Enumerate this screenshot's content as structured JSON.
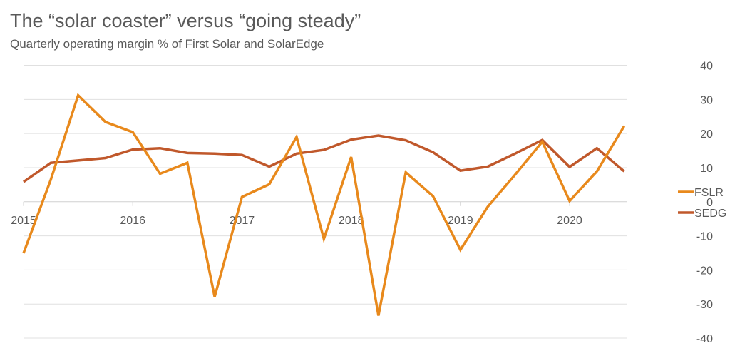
{
  "chart_data": {
    "type": "line",
    "title": "The “solar coaster” versus “going steady”",
    "subtitle": "Quarterly operating margin % of First Solar and SolarEdge",
    "xlabel": "",
    "ylabel": "",
    "ylim": [
      -40,
      40
    ],
    "yticks": [
      "40",
      "30",
      "20",
      "10",
      "0",
      "-10",
      "-20",
      "-30",
      "-40"
    ],
    "ytick_values": [
      40,
      30,
      20,
      10,
      0,
      -10,
      -20,
      -30,
      -40
    ],
    "xticks": [
      "2015",
      "2016",
      "2017",
      "2018",
      "2019",
      "2020"
    ],
    "x_quarter_start": 2015,
    "grid": true,
    "legend_position": "right",
    "series": [
      {
        "name": "FSLR",
        "color": "#E8891C",
        "values": [
          -15.1,
          6.5,
          31.2,
          23.4,
          20.4,
          8.2,
          11.4,
          -27.9,
          1.4,
          5.1,
          19.0,
          -10.9,
          13.1,
          -33.4,
          8.6,
          1.6,
          -14.1,
          -1.5,
          7.9,
          17.6,
          0.2,
          8.9,
          22.2
        ]
      },
      {
        "name": "SEDG",
        "color": "#C0582B",
        "values": [
          5.8,
          11.4,
          12.1,
          12.8,
          15.3,
          15.7,
          14.3,
          14.1,
          13.7,
          10.3,
          14.1,
          15.2,
          18.2,
          19.4,
          18.0,
          14.5,
          9.1,
          10.3,
          14.1,
          18.1,
          10.2,
          15.7,
          8.9
        ]
      }
    ]
  }
}
